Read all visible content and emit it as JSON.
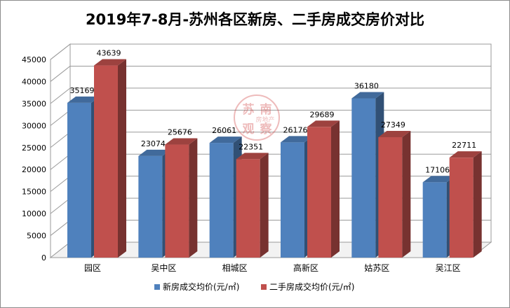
{
  "chart_data": {
    "type": "bar",
    "title": "2019年7-8月-苏州各区新房、二手房成交房价对比",
    "categories": [
      "园区",
      "吴中区",
      "相城区",
      "高新区",
      "姑苏区",
      "吴江区"
    ],
    "series": [
      {
        "name": "新房成交均价(元/㎡)",
        "values": [
          35169,
          23074,
          26061,
          26176,
          36180,
          17106
        ],
        "color": "#4f81bd"
      },
      {
        "name": "二手房成交均价(元/㎡)",
        "values": [
          43639,
          25676,
          22351,
          29689,
          27349,
          22711
        ],
        "color": "#c0504d"
      }
    ],
    "ylim": [
      0,
      45000
    ],
    "yticks": [
      0,
      5000,
      10000,
      15000,
      20000,
      25000,
      30000,
      35000,
      40000,
      45000
    ],
    "grid": true,
    "legend": "bottom",
    "watermark": [
      "苏",
      "南",
      "房地产",
      "观",
      "察"
    ]
  }
}
